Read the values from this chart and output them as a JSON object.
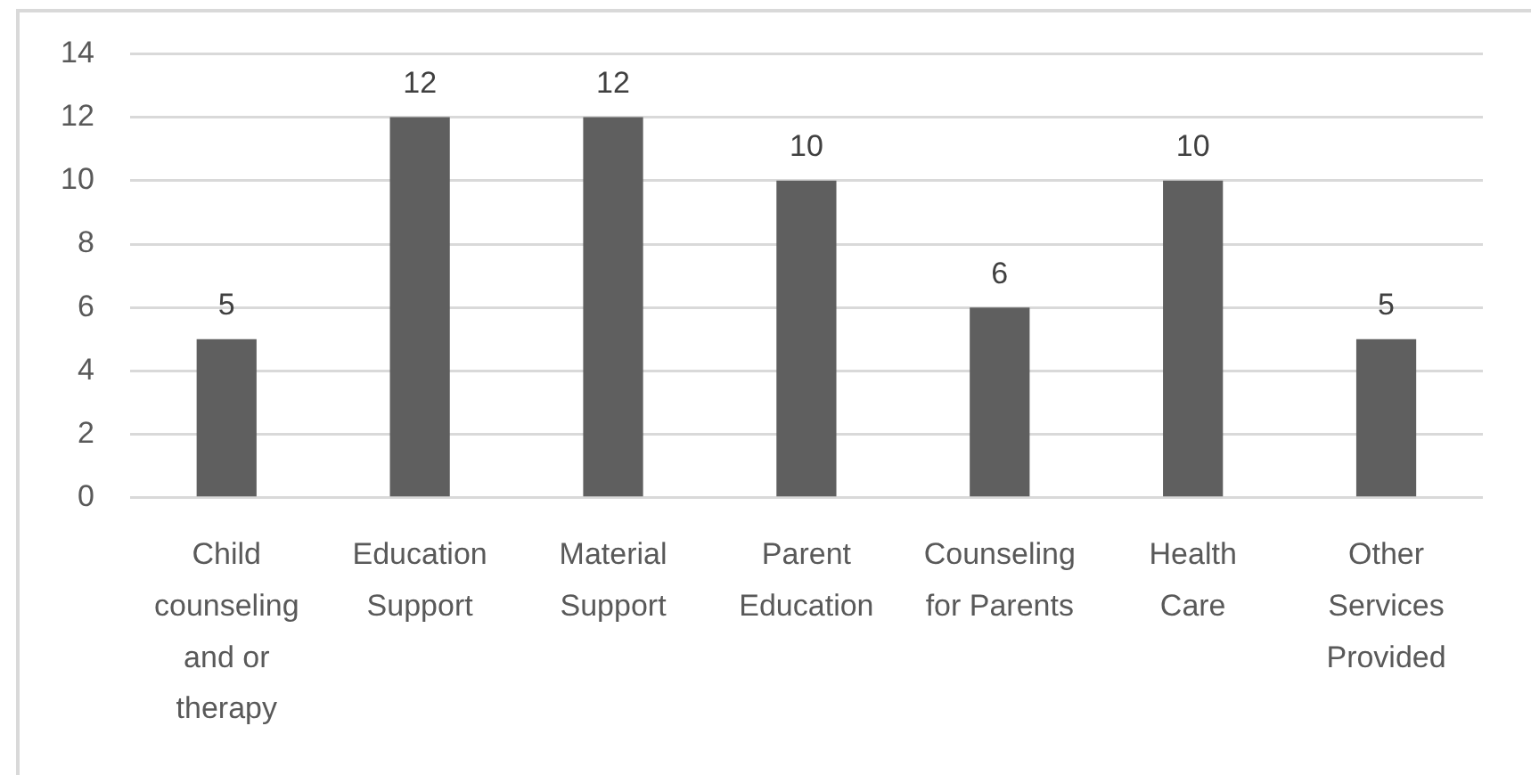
{
  "chart_data": {
    "type": "bar",
    "categories": [
      "Child counseling and or therapy",
      "Education Support",
      "Material Support",
      "Parent Education",
      "Counseling for Parents",
      "Health Care",
      "Other Services Provided"
    ],
    "values": [
      5,
      12,
      12,
      10,
      6,
      10,
      5
    ],
    "color": "#5f5f5f",
    "ylim": [
      0,
      14
    ],
    "yticks": [
      0,
      2,
      4,
      6,
      8,
      10,
      12,
      14
    ],
    "grid": "y",
    "data_labels": true
  }
}
